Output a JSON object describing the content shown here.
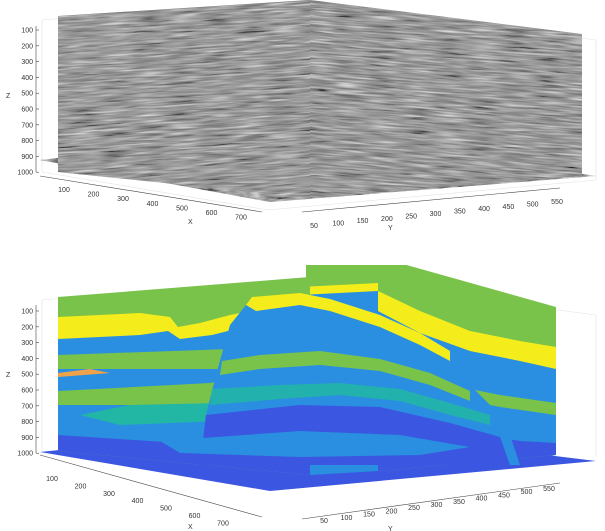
{
  "figures": [
    {
      "id": "seismic",
      "kind": "seismic-amplitude",
      "z_axis": {
        "label": "Z",
        "ticks": [
          "100",
          "200",
          "300",
          "400",
          "500",
          "600",
          "700",
          "800",
          "900",
          "1000"
        ]
      },
      "x_axis": {
        "label": "X",
        "ticks": [
          "100",
          "200",
          "300",
          "400",
          "500",
          "600",
          "700"
        ]
      },
      "y_axis": {
        "label": "Y",
        "ticks": [
          "50",
          "100",
          "150",
          "200",
          "250",
          "300",
          "350",
          "400",
          "450",
          "500",
          "550"
        ]
      }
    },
    {
      "id": "facies",
      "kind": "facies-model",
      "z_axis": {
        "label": "Z",
        "ticks": [
          "100",
          "200",
          "300",
          "400",
          "500",
          "600",
          "700",
          "800",
          "900",
          "1000"
        ]
      },
      "x_axis": {
        "label": "X",
        "ticks": [
          "100",
          "200",
          "300",
          "400",
          "500",
          "600",
          "700"
        ]
      },
      "y_axis": {
        "label": "Y",
        "ticks": [
          "50",
          "100",
          "150",
          "200",
          "250",
          "300",
          "350",
          "400",
          "450",
          "500",
          "550"
        ]
      },
      "colors": {
        "green": "#79c34a",
        "blue": "#2a8fe0",
        "yellow": "#f5ec1c",
        "dark_blue": "#3b56e0",
        "teal": "#22b7a5",
        "orange": "#f0a24a"
      }
    }
  ]
}
